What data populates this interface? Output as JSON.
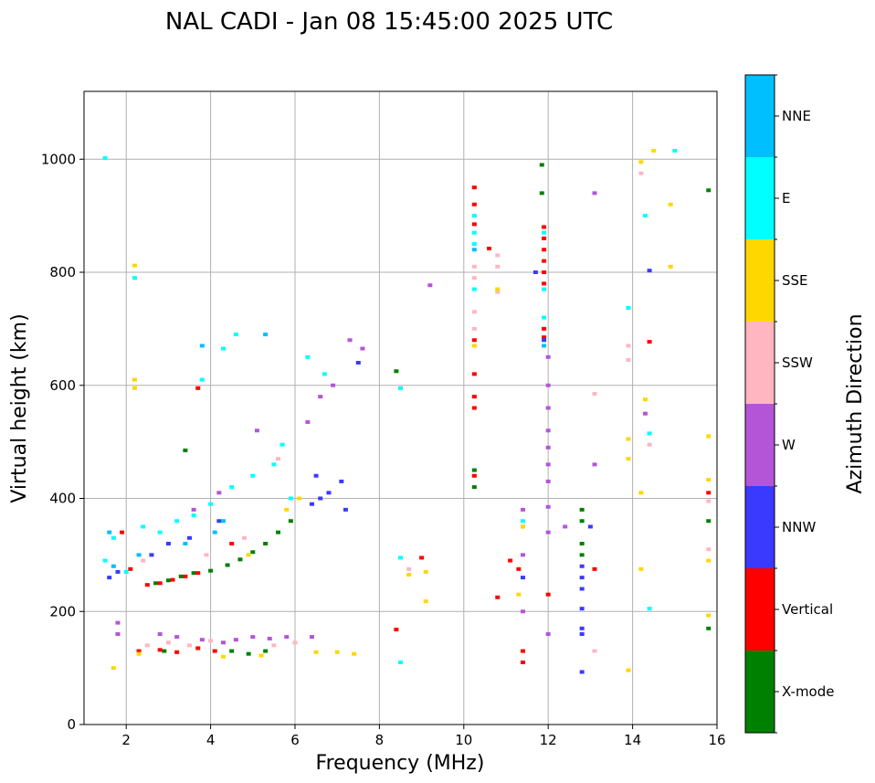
{
  "chart_data": {
    "type": "scatter",
    "title": "NAL CADI - Jan 08 15:45:00 2025 UTC",
    "xlabel": "Frequency (MHz)",
    "ylabel": "Virtual height (km)",
    "xlim": [
      1,
      16
    ],
    "ylim": [
      0,
      1120
    ],
    "xticks": [
      2,
      4,
      6,
      8,
      10,
      12,
      14,
      16
    ],
    "yticks": [
      0,
      200,
      400,
      600,
      800,
      1000
    ],
    "grid": true,
    "colorbar": {
      "title": "Azimuth Direction",
      "categories": [
        {
          "label": "X-mode",
          "color": "#008000"
        },
        {
          "label": "Vertical",
          "color": "#ff0000"
        },
        {
          "label": "NNW",
          "color": "#3a3aff"
        },
        {
          "label": "W",
          "color": "#b455d8"
        },
        {
          "label": "SSW",
          "color": "#ffb6c1"
        },
        {
          "label": "SSE",
          "color": "#ffd700"
        },
        {
          "label": "E",
          "color": "#00ffff"
        },
        {
          "label": "NNE",
          "color": "#00bfff"
        }
      ]
    },
    "series": [
      {
        "name": "X-mode",
        "points": [
          [
            2.7,
            250
          ],
          [
            3.0,
            255
          ],
          [
            3.3,
            262
          ],
          [
            3.6,
            268
          ],
          [
            4.0,
            272
          ],
          [
            4.4,
            282
          ],
          [
            4.7,
            292
          ],
          [
            5.0,
            305
          ],
          [
            5.3,
            320
          ],
          [
            5.6,
            340
          ],
          [
            5.9,
            360
          ],
          [
            4.5,
            130
          ],
          [
            4.9,
            125
          ],
          [
            5.3,
            130
          ],
          [
            10.25,
            420
          ],
          [
            10.25,
            450
          ],
          [
            11.85,
            990
          ],
          [
            11.85,
            940
          ],
          [
            12.8,
            380
          ],
          [
            12.8,
            360
          ],
          [
            12.8,
            320
          ],
          [
            12.8,
            300
          ],
          [
            15.8,
            945
          ],
          [
            15.8,
            360
          ],
          [
            15.8,
            170
          ],
          [
            8.4,
            625
          ],
          [
            3.4,
            485
          ],
          [
            2.9,
            130
          ],
          [
            11.4,
            350
          ]
        ]
      },
      {
        "name": "Vertical",
        "points": [
          [
            2.5,
            247
          ],
          [
            2.8,
            250
          ],
          [
            3.1,
            256
          ],
          [
            3.4,
            262
          ],
          [
            3.7,
            268
          ],
          [
            2.1,
            275
          ],
          [
            1.9,
            340
          ],
          [
            2.3,
            130
          ],
          [
            2.8,
            132
          ],
          [
            3.2,
            128
          ],
          [
            3.7,
            135
          ],
          [
            4.1,
            130
          ],
          [
            3.7,
            595
          ],
          [
            4.5,
            320
          ],
          [
            10.25,
            950
          ],
          [
            10.25,
            920
          ],
          [
            10.25,
            885
          ],
          [
            10.25,
            680
          ],
          [
            10.25,
            620
          ],
          [
            10.25,
            580
          ],
          [
            10.25,
            560
          ],
          [
            10.25,
            440
          ],
          [
            11.3,
            275
          ],
          [
            11.1,
            290
          ],
          [
            11.9,
            880
          ],
          [
            11.9,
            860
          ],
          [
            11.9,
            840
          ],
          [
            11.9,
            820
          ],
          [
            11.9,
            800
          ],
          [
            11.9,
            780
          ],
          [
            11.9,
            700
          ],
          [
            11.9,
            685
          ],
          [
            13.1,
            275
          ],
          [
            14.4,
            677
          ],
          [
            15.8,
            410
          ],
          [
            8.4,
            168
          ],
          [
            9.0,
            295
          ],
          [
            10.8,
            225
          ],
          [
            11.4,
            130
          ],
          [
            11.4,
            110
          ],
          [
            12.0,
            230
          ],
          [
            10.6,
            842
          ]
        ]
      },
      {
        "name": "NNW",
        "points": [
          [
            1.6,
            260
          ],
          [
            1.8,
            270
          ],
          [
            2.6,
            300
          ],
          [
            3.0,
            320
          ],
          [
            3.5,
            330
          ],
          [
            4.2,
            360
          ],
          [
            6.4,
            390
          ],
          [
            6.6,
            400
          ],
          [
            6.8,
            410
          ],
          [
            7.1,
            430
          ],
          [
            7.5,
            640
          ],
          [
            7.2,
            380
          ],
          [
            6.5,
            440
          ],
          [
            12.8,
            240
          ],
          [
            12.8,
            260
          ],
          [
            12.8,
            280
          ],
          [
            12.8,
            205
          ],
          [
            12.8,
            170
          ],
          [
            12.8,
            160
          ],
          [
            12.8,
            93
          ],
          [
            13.0,
            350
          ],
          [
            11.7,
            800
          ],
          [
            11.4,
            260
          ],
          [
            11.9,
            680
          ],
          [
            14.4,
            803
          ]
        ]
      },
      {
        "name": "W",
        "points": [
          [
            4.6,
            150
          ],
          [
            5.0,
            155
          ],
          [
            5.4,
            152
          ],
          [
            5.8,
            155
          ],
          [
            6.4,
            155
          ],
          [
            2.8,
            160
          ],
          [
            3.2,
            155
          ],
          [
            3.8,
            150
          ],
          [
            4.3,
            145
          ],
          [
            6.3,
            535
          ],
          [
            6.6,
            580
          ],
          [
            6.9,
            600
          ],
          [
            7.3,
            680
          ],
          [
            7.6,
            665
          ],
          [
            3.6,
            380
          ],
          [
            4.2,
            410
          ],
          [
            5.1,
            520
          ],
          [
            12.0,
            650
          ],
          [
            12.0,
            600
          ],
          [
            12.0,
            560
          ],
          [
            12.0,
            520
          ],
          [
            12.0,
            490
          ],
          [
            12.0,
            460
          ],
          [
            12.0,
            430
          ],
          [
            12.0,
            385
          ],
          [
            12.0,
            340
          ],
          [
            12.0,
            160
          ],
          [
            12.4,
            350
          ],
          [
            13.1,
            940
          ],
          [
            13.1,
            460
          ],
          [
            9.2,
            777
          ],
          [
            14.3,
            550
          ],
          [
            1.8,
            180
          ],
          [
            1.8,
            160
          ],
          [
            11.4,
            380
          ],
          [
            11.4,
            300
          ],
          [
            11.4,
            200
          ]
        ]
      },
      {
        "name": "SSW",
        "points": [
          [
            2.5,
            140
          ],
          [
            3.0,
            145
          ],
          [
            3.5,
            140
          ],
          [
            4.0,
            148
          ],
          [
            5.5,
            140
          ],
          [
            6.0,
            145
          ],
          [
            2.4,
            290
          ],
          [
            3.9,
            300
          ],
          [
            4.8,
            330
          ],
          [
            5.6,
            470
          ],
          [
            10.25,
            810
          ],
          [
            10.25,
            790
          ],
          [
            10.25,
            730
          ],
          [
            10.25,
            700
          ],
          [
            10.8,
            830
          ],
          [
            10.8,
            810
          ],
          [
            13.1,
            585
          ],
          [
            13.1,
            130
          ],
          [
            13.9,
            645
          ],
          [
            13.9,
            670
          ],
          [
            14.2,
            975
          ],
          [
            15.8,
            310
          ],
          [
            15.8,
            395
          ],
          [
            14.4,
            495
          ],
          [
            8.7,
            275
          ],
          [
            10.8,
            765
          ]
        ]
      },
      {
        "name": "SSE",
        "points": [
          [
            2.2,
            812
          ],
          [
            2.2,
            595
          ],
          [
            2.2,
            610
          ],
          [
            1.7,
            100
          ],
          [
            2.3,
            125
          ],
          [
            4.3,
            120
          ],
          [
            5.2,
            122
          ],
          [
            6.5,
            128
          ],
          [
            7.0,
            128
          ],
          [
            7.4,
            125
          ],
          [
            5.8,
            380
          ],
          [
            6.1,
            400
          ],
          [
            4.9,
            300
          ],
          [
            10.25,
            670
          ],
          [
            10.8,
            770
          ],
          [
            11.3,
            230
          ],
          [
            11.4,
            350
          ],
          [
            13.9,
            96
          ],
          [
            13.9,
            470
          ],
          [
            13.9,
            505
          ],
          [
            14.2,
            275
          ],
          [
            14.2,
            410
          ],
          [
            14.2,
            995
          ],
          [
            14.3,
            575
          ],
          [
            14.9,
            920
          ],
          [
            15.8,
            433
          ],
          [
            15.8,
            510
          ],
          [
            15.8,
            290
          ],
          [
            15.8,
            193
          ],
          [
            8.7,
            265
          ],
          [
            9.1,
            270
          ],
          [
            9.1,
            218
          ],
          [
            14.9,
            810
          ],
          [
            14.5,
            1015
          ]
        ]
      },
      {
        "name": "E",
        "points": [
          [
            1.5,
            290
          ],
          [
            1.7,
            330
          ],
          [
            2.0,
            270
          ],
          [
            2.2,
            790
          ],
          [
            2.4,
            350
          ],
          [
            2.8,
            340
          ],
          [
            3.2,
            360
          ],
          [
            3.6,
            370
          ],
          [
            4.0,
            390
          ],
          [
            4.5,
            420
          ],
          [
            5.0,
            440
          ],
          [
            5.5,
            460
          ],
          [
            5.9,
            400
          ],
          [
            3.8,
            610
          ],
          [
            4.3,
            665
          ],
          [
            4.6,
            690
          ],
          [
            5.7,
            495
          ],
          [
            6.7,
            620
          ],
          [
            6.3,
            650
          ],
          [
            10.25,
            900
          ],
          [
            10.25,
            870
          ],
          [
            10.25,
            850
          ],
          [
            10.25,
            770
          ],
          [
            11.9,
            870
          ],
          [
            11.9,
            770
          ],
          [
            11.9,
            720
          ],
          [
            11.4,
            360
          ],
          [
            14.3,
            900
          ],
          [
            14.4,
            515
          ],
          [
            14.4,
            205
          ],
          [
            13.9,
            737
          ],
          [
            8.5,
            595
          ],
          [
            8.5,
            110
          ],
          [
            8.5,
            295
          ],
          [
            1.5,
            1002
          ],
          [
            15.0,
            1015
          ]
        ]
      },
      {
        "name": "NNE",
        "points": [
          [
            1.6,
            340
          ],
          [
            1.7,
            280
          ],
          [
            2.3,
            300
          ],
          [
            3.4,
            320
          ],
          [
            4.1,
            340
          ],
          [
            4.3,
            360
          ],
          [
            3.8,
            670
          ],
          [
            5.3,
            690
          ],
          [
            10.25,
            840
          ],
          [
            11.9,
            670
          ]
        ]
      }
    ]
  }
}
